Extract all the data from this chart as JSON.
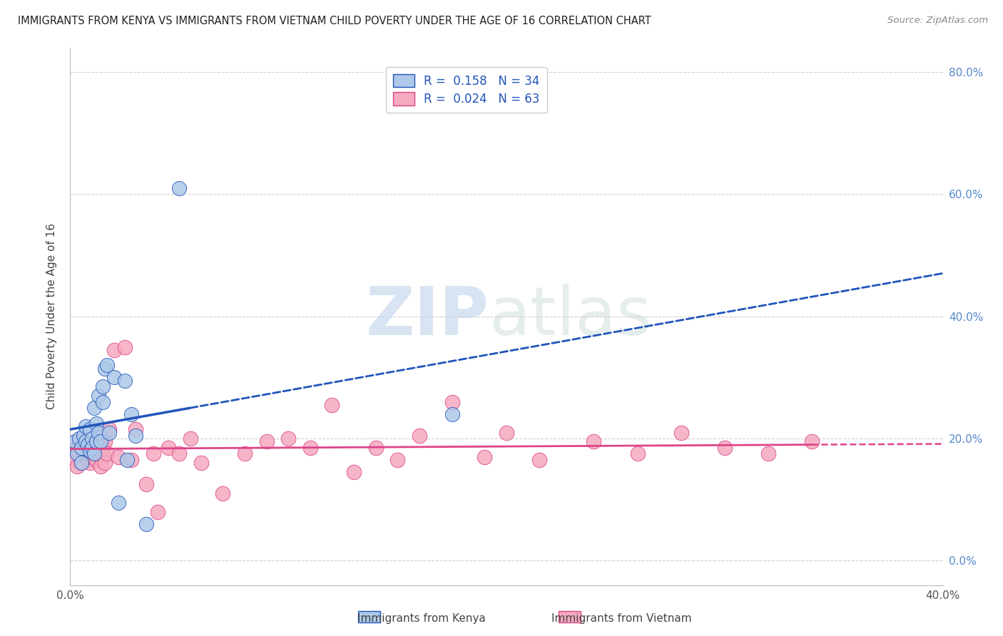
{
  "title": "IMMIGRANTS FROM KENYA VS IMMIGRANTS FROM VIETNAM CHILD POVERTY UNDER THE AGE OF 16 CORRELATION CHART",
  "source": "Source: ZipAtlas.com",
  "ylabel": "Child Poverty Under the Age of 16",
  "xlim": [
    0.0,
    0.4
  ],
  "ylim": [
    -0.04,
    0.84
  ],
  "xtick_positions": [
    0.0,
    0.05,
    0.1,
    0.15,
    0.2,
    0.25,
    0.3,
    0.35,
    0.4
  ],
  "xtick_labels": [
    "0.0%",
    "",
    "",
    "",
    "",
    "",
    "",
    "",
    "40.0%"
  ],
  "ytick_positions": [
    0.0,
    0.2,
    0.4,
    0.6,
    0.8
  ],
  "ytick_labels": [
    "0.0%",
    "20.0%",
    "40.0%",
    "60.0%",
    "80.0%"
  ],
  "kenya_R": 0.158,
  "kenya_N": 34,
  "vietnam_R": 0.024,
  "vietnam_N": 63,
  "kenya_color": "#adc8e8",
  "vietnam_color": "#f5aabf",
  "kenya_line_color": "#2255bb",
  "vietnam_line_color": "#dd4488",
  "kenya_scatter_x": [
    0.002,
    0.003,
    0.004,
    0.005,
    0.005,
    0.006,
    0.007,
    0.007,
    0.008,
    0.009,
    0.009,
    0.01,
    0.01,
    0.011,
    0.011,
    0.012,
    0.012,
    0.013,
    0.013,
    0.014,
    0.015,
    0.015,
    0.016,
    0.017,
    0.018,
    0.02,
    0.022,
    0.025,
    0.026,
    0.028,
    0.03,
    0.035,
    0.05,
    0.175
  ],
  "kenya_scatter_y": [
    0.195,
    0.175,
    0.2,
    0.185,
    0.16,
    0.205,
    0.195,
    0.22,
    0.19,
    0.215,
    0.18,
    0.2,
    0.185,
    0.175,
    0.25,
    0.195,
    0.225,
    0.21,
    0.27,
    0.195,
    0.285,
    0.26,
    0.315,
    0.32,
    0.21,
    0.3,
    0.095,
    0.295,
    0.165,
    0.24,
    0.205,
    0.06,
    0.61,
    0.24
  ],
  "vietnam_scatter_x": [
    0.002,
    0.003,
    0.003,
    0.004,
    0.004,
    0.005,
    0.005,
    0.006,
    0.006,
    0.007,
    0.007,
    0.008,
    0.008,
    0.009,
    0.009,
    0.01,
    0.01,
    0.011,
    0.011,
    0.012,
    0.012,
    0.013,
    0.013,
    0.014,
    0.014,
    0.015,
    0.015,
    0.016,
    0.016,
    0.017,
    0.018,
    0.02,
    0.022,
    0.025,
    0.028,
    0.03,
    0.035,
    0.038,
    0.04,
    0.045,
    0.05,
    0.055,
    0.06,
    0.07,
    0.08,
    0.09,
    0.1,
    0.11,
    0.12,
    0.13,
    0.14,
    0.15,
    0.16,
    0.175,
    0.19,
    0.2,
    0.215,
    0.24,
    0.26,
    0.28,
    0.3,
    0.32,
    0.34
  ],
  "vietnam_scatter_y": [
    0.165,
    0.185,
    0.155,
    0.175,
    0.195,
    0.16,
    0.2,
    0.175,
    0.185,
    0.17,
    0.19,
    0.165,
    0.195,
    0.175,
    0.16,
    0.18,
    0.17,
    0.195,
    0.175,
    0.185,
    0.165,
    0.21,
    0.175,
    0.185,
    0.155,
    0.195,
    0.175,
    0.16,
    0.195,
    0.175,
    0.215,
    0.345,
    0.17,
    0.35,
    0.165,
    0.215,
    0.125,
    0.175,
    0.08,
    0.185,
    0.175,
    0.2,
    0.16,
    0.11,
    0.175,
    0.195,
    0.2,
    0.185,
    0.255,
    0.145,
    0.185,
    0.165,
    0.205,
    0.26,
    0.17,
    0.21,
    0.165,
    0.195,
    0.175,
    0.21,
    0.185,
    0.175,
    0.195
  ],
  "kenya_line_x0": 0.0,
  "kenya_line_y0": 0.215,
  "kenya_line_x1": 0.18,
  "kenya_line_y1": 0.33,
  "vietnam_line_x0": 0.0,
  "vietnam_line_y0": 0.183,
  "vietnam_line_x1": 0.34,
  "vietnam_line_y1": 0.19,
  "watermark_zip": "ZIP",
  "watermark_atlas": "atlas",
  "background_color": "#ffffff",
  "grid_color": "#d0d0d0",
  "legend_r_color": "#2255bb",
  "legend_n_color": "#dd0000"
}
